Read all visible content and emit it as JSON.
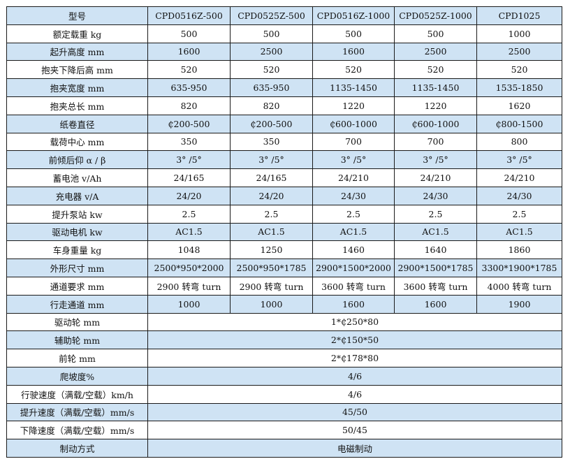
{
  "header": {
    "label": "型号",
    "models": [
      "CPD0516Z-500",
      "CPD0525Z-500",
      "CPD0516Z-1000",
      "CPD0525Z-1000",
      "CPD1025"
    ]
  },
  "rows": [
    {
      "label": "额定载重 kg",
      "values": [
        "500",
        "500",
        "500",
        "500",
        "1000"
      ]
    },
    {
      "label": "起升高度 mm",
      "values": [
        "1600",
        "2500",
        "1600",
        "2500",
        "2500"
      ]
    },
    {
      "label": "抱夹下降后高 mm",
      "values": [
        "520",
        "520",
        "520",
        "520",
        "520"
      ]
    },
    {
      "label": "抱夹宽度 mm",
      "values": [
        "635-950",
        "635-950",
        "1135-1450",
        "1135-1450",
        "1535-1850"
      ]
    },
    {
      "label": "抱夹总长 mm",
      "values": [
        "820",
        "820",
        "1220",
        "1220",
        "1620"
      ]
    },
    {
      "label": "纸卷直径",
      "values": [
        "₵200-500",
        "₵200-500",
        "₵600-1000",
        "₵600-1000",
        "₵800-1500"
      ]
    },
    {
      "label": "载荷中心 mm",
      "values": [
        "350",
        "350",
        "700",
        "700",
        "800"
      ]
    },
    {
      "label": "前倾后仰 α / β",
      "values": [
        "3° /5°",
        "3° /5°",
        "3° /5°",
        "3° /5°",
        "3° /5°"
      ]
    },
    {
      "label": "蓄电池 v/Ah",
      "values": [
        "24/165",
        "24/165",
        "24/210",
        "24/210",
        "24/210"
      ]
    },
    {
      "label": "充电器 v/A",
      "values": [
        "24/20",
        "24/20",
        "24/30",
        "24/30",
        "24/30"
      ]
    },
    {
      "label": "提升泵站 kw",
      "values": [
        "2.5",
        "2.5",
        "2.5",
        "2.5",
        "2.5"
      ]
    },
    {
      "label": "驱动电机 kw",
      "values": [
        "AC1.5",
        "AC1.5",
        "AC1.5",
        "AC1.5",
        "AC1.5"
      ]
    },
    {
      "label": "车身重量 kg",
      "values": [
        "1048",
        "1250",
        "1460",
        "1640",
        "1860"
      ]
    },
    {
      "label": "外形尺寸 mm",
      "values": [
        "2500*950*2000",
        "2500*950*1785",
        "2900*1500*2000",
        "2900*1500*1785",
        "3300*1900*1785"
      ]
    },
    {
      "label": "通道要求 mm",
      "values": [
        "2900 转弯 turn",
        "2900 转弯 turn",
        "3600 转弯 turn",
        "3600 转弯 turn",
        "4000 转弯 turn"
      ]
    },
    {
      "label": "行走通道 mm",
      "values": [
        "1000",
        "1000",
        "1600",
        "1600",
        "1900"
      ]
    }
  ],
  "shared_rows": [
    {
      "label": "驱动轮 mm",
      "value": "1*₵250*80"
    },
    {
      "label": "辅助轮 mm",
      "value": "2*₵150*50"
    },
    {
      "label": "前轮 mm",
      "value": "2*₵178*80"
    },
    {
      "label": "爬坡度%",
      "value": "4/6"
    },
    {
      "label": "行驶速度（满载/空载）km/h",
      "value": "4/6"
    },
    {
      "label": "提升速度（满载/空载）mm/s",
      "value": "45/50"
    },
    {
      "label": "下降速度（满载/空载）mm/s",
      "value": "50/45"
    },
    {
      "label": "制动方式",
      "value": "电磁制动"
    }
  ],
  "colors": {
    "row_blue": "#cfe3f4",
    "row_white": "#ffffff",
    "border": "#1a1a1a"
  }
}
